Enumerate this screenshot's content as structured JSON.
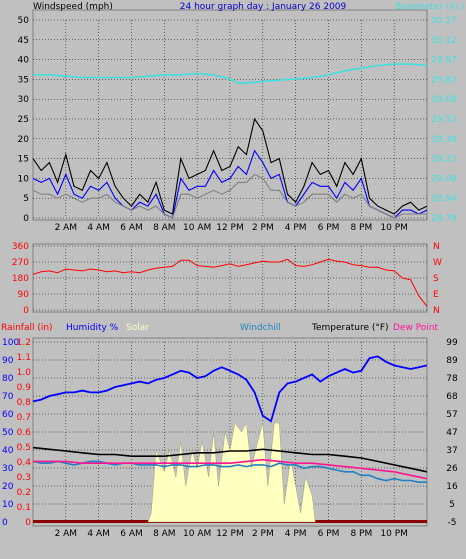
{
  "chart_data": [
    {
      "type": "line",
      "title": "24 hour graph day : January 26 2009",
      "left_axis_label": "Windspeed (mph)",
      "right_axis_label": "Barometer (in.)",
      "x_ticks": [
        "2 AM",
        "4 AM",
        "6 AM",
        "8 AM",
        "10 AM",
        "12 PM",
        "2 PM",
        "4 PM",
        "6 PM",
        "8 PM",
        "10 PM"
      ],
      "x_range_hours": [
        0,
        24
      ],
      "ylim_left": [
        0,
        50
      ],
      "yticks_left": [
        "0",
        "5",
        "10",
        "15",
        "20",
        "25",
        "30",
        "35",
        "40",
        "45",
        "50"
      ],
      "ylim_right": [
        28.79,
        30.27
      ],
      "yticks_right": [
        "28.79",
        "28.94",
        "29.09",
        "29.23",
        "29.38",
        "29.53",
        "29.68",
        "29.83",
        "29.97",
        "30.12",
        "30.27"
      ],
      "grid": true,
      "colors": {
        "barometer": "#40e0e0",
        "gust": "#000000",
        "wind": "#0000ff",
        "avg_wind": "#808080",
        "title": "#0000cc"
      },
      "series": [
        {
          "key": "barometer",
          "axis": "right",
          "x": [
            0,
            1,
            2,
            3,
            4,
            5,
            6,
            7,
            8,
            9,
            10,
            11,
            12,
            12.5,
            13,
            14,
            15,
            16,
            17,
            18,
            19,
            20,
            21,
            22,
            23,
            24
          ],
          "y": [
            29.86,
            29.86,
            29.85,
            29.84,
            29.84,
            29.84,
            29.84,
            29.85,
            29.86,
            29.86,
            29.87,
            29.86,
            29.83,
            29.8,
            29.8,
            29.81,
            29.82,
            29.83,
            29.84,
            29.86,
            29.89,
            29.91,
            29.93,
            29.94,
            29.94,
            29.93
          ]
        },
        {
          "key": "gust",
          "axis": "left",
          "x": [
            0,
            0.5,
            1,
            1.5,
            2,
            2.5,
            3,
            3.5,
            4,
            4.5,
            5,
            5.5,
            6,
            6.5,
            7,
            7.5,
            8,
            8.5,
            9,
            9.5,
            10,
            10.5,
            11,
            11.5,
            12,
            12.5,
            13,
            13.5,
            14,
            14.5,
            15,
            15.5,
            16,
            16.5,
            17,
            17.5,
            18,
            18.5,
            19,
            19.5,
            20,
            20.5,
            21,
            21.5,
            22,
            22.5,
            23,
            23.5,
            24
          ],
          "y": [
            15,
            12,
            14,
            9,
            16,
            8,
            7,
            12,
            10,
            14,
            8,
            5,
            3,
            6,
            4,
            9,
            2,
            1,
            15,
            10,
            11,
            12,
            17,
            12,
            13,
            18,
            16,
            25,
            22,
            14,
            15,
            6,
            4,
            8,
            14,
            11,
            12,
            8,
            14,
            11,
            15,
            5,
            3,
            2,
            1,
            3,
            4,
            2,
            3
          ]
        },
        {
          "key": "wind",
          "axis": "left",
          "x": [
            0,
            0.5,
            1,
            1.5,
            2,
            2.5,
            3,
            3.5,
            4,
            4.5,
            5,
            5.5,
            6,
            6.5,
            7,
            7.5,
            8,
            8.5,
            9,
            9.5,
            10,
            10.5,
            11,
            11.5,
            12,
            12.5,
            13,
            13.5,
            14,
            14.5,
            15,
            15.5,
            16,
            16.5,
            17,
            17.5,
            18,
            18.5,
            19,
            19.5,
            20,
            20.5,
            21,
            21.5,
            22,
            22.5,
            23,
            23.5,
            24
          ],
          "y": [
            10,
            9,
            10,
            6,
            11,
            6,
            5,
            8,
            7,
            9,
            5,
            3,
            2,
            4,
            3,
            6,
            1,
            0,
            10,
            7,
            8,
            8,
            12,
            9,
            10,
            13,
            11,
            17,
            14,
            10,
            11,
            4,
            3,
            6,
            9,
            8,
            8,
            5,
            9,
            7,
            10,
            3,
            2,
            1,
            0,
            2,
            2,
            1,
            2
          ]
        },
        {
          "key": "avg_wind",
          "axis": "left",
          "x": [
            0,
            0.5,
            1,
            1.5,
            2,
            2.5,
            3,
            3.5,
            4,
            4.5,
            5,
            5.5,
            6,
            6.5,
            7,
            7.5,
            8,
            8.5,
            9,
            9.5,
            10,
            10.5,
            11,
            11.5,
            12,
            12.5,
            13,
            13.5,
            14,
            14.5,
            15,
            15.5,
            16,
            16.5,
            17,
            17.5,
            18,
            18.5,
            19,
            19.5,
            20,
            20.5,
            21,
            21.5,
            22,
            22.5,
            23,
            23.5,
            24
          ],
          "y": [
            7,
            6,
            6,
            5,
            6,
            5,
            4,
            5,
            5,
            6,
            4,
            3,
            2,
            3,
            2,
            3,
            1,
            0,
            6,
            6,
            5,
            6,
            7,
            6,
            7,
            9,
            9,
            11,
            10,
            7,
            7,
            4,
            3,
            4,
            6,
            6,
            6,
            4,
            6,
            5,
            6,
            3,
            2,
            1,
            0,
            1,
            1,
            1,
            1
          ]
        }
      ]
    },
    {
      "type": "line",
      "title": "",
      "x_ticks": [
        "2 AM",
        "4 AM",
        "6 AM",
        "8 AM",
        "10 AM",
        "12 PM",
        "2 PM",
        "4 PM",
        "6 PM",
        "8 PM",
        "10 PM"
      ],
      "x_range_hours": [
        0,
        24
      ],
      "ylim_left": [
        0,
        360
      ],
      "yticks_left": [
        "0",
        "90",
        "180",
        "270",
        "360"
      ],
      "yticks_right": [
        "N",
        "E",
        "S",
        "W",
        "N"
      ],
      "grid": true,
      "colors": {
        "direction": "#ff0000",
        "axis_text": "#ff0000"
      },
      "series": [
        {
          "key": "direction",
          "axis": "left",
          "x": [
            0,
            0.5,
            1,
            1.5,
            2,
            2.5,
            3,
            3.5,
            4,
            4.5,
            5,
            5.5,
            6,
            6.5,
            7,
            7.5,
            8,
            8.5,
            9,
            9.5,
            10,
            10.5,
            11,
            11.5,
            12,
            12.5,
            13,
            13.5,
            14,
            14.5,
            15,
            15.5,
            16,
            16.5,
            17,
            17.5,
            18,
            18.5,
            19,
            19.5,
            20,
            20.5,
            21,
            21.5,
            22,
            22.5,
            23,
            23.5,
            24
          ],
          "y": [
            200,
            215,
            220,
            210,
            230,
            225,
            220,
            230,
            225,
            215,
            220,
            210,
            215,
            210,
            225,
            235,
            240,
            245,
            280,
            280,
            250,
            245,
            240,
            250,
            260,
            245,
            255,
            265,
            275,
            270,
            270,
            285,
            250,
            245,
            255,
            270,
            285,
            275,
            270,
            255,
            250,
            240,
            240,
            225,
            220,
            180,
            170,
            80,
            20
          ]
        }
      ]
    },
    {
      "type": "area",
      "title": "",
      "header_labels": {
        "rainfall": "Rainfall (in)",
        "humidity": "Humidity %",
        "solar": "Solar",
        "windchill": "Windchill",
        "temperature": "Temperature (°F)",
        "dew_point": "Dew Point"
      },
      "x_ticks": [
        "2 AM",
        "4 AM",
        "6 AM",
        "8 AM",
        "10 AM",
        "12 PM",
        "2 PM",
        "4 PM",
        "6 PM",
        "8 PM",
        "10 PM"
      ],
      "x_range_hours": [
        0,
        24
      ],
      "ylim_left_humidity": [
        0,
        100
      ],
      "yticks_humidity": [
        "0",
        "10",
        "20",
        "30",
        "40",
        "50",
        "60",
        "70",
        "80",
        "90",
        "100"
      ],
      "yticks_rain": [
        "0",
        "0.1",
        "0.2",
        "0.3",
        "0.4",
        "0.5",
        "0.6",
        "0.7",
        "0.8",
        "0.9",
        "1.0",
        "1.1",
        "1.2"
      ],
      "ylim_right_temperature": [
        -5,
        99
      ],
      "yticks_temperature": [
        "-5",
        "5",
        "16",
        "26",
        "37",
        "47",
        "57",
        "68",
        "78",
        "89",
        "99"
      ],
      "grid": true,
      "colors": {
        "rainfall_label": "#ff0000",
        "humidity": "#0000ff",
        "solar": "#ffffc0",
        "windchill": "#2080c0",
        "temperature": "#000000",
        "dew_point": "#ff1493",
        "rain_base": "#8b0000"
      },
      "series": [
        {
          "key": "humidity",
          "axis": "left",
          "x": [
            0,
            0.5,
            1,
            1.5,
            2,
            2.5,
            3,
            3.5,
            4,
            4.5,
            5,
            5.5,
            6,
            6.5,
            7,
            7.5,
            8,
            8.5,
            9,
            9.5,
            10,
            10.5,
            11,
            11.5,
            12,
            12.5,
            13,
            13.5,
            14,
            14.5,
            15,
            15.5,
            16,
            16.5,
            17,
            17.5,
            18,
            18.5,
            19,
            19.5,
            20,
            20.5,
            21,
            21.5,
            22,
            22.5,
            23,
            23.5,
            24
          ],
          "y": [
            67,
            68,
            70,
            71,
            72,
            72,
            73,
            72,
            72,
            73,
            75,
            76,
            77,
            78,
            77,
            79,
            80,
            82,
            84,
            83,
            80,
            81,
            84,
            86,
            84,
            82,
            79,
            72,
            59,
            56,
            72,
            77,
            78,
            80,
            82,
            78,
            81,
            83,
            85,
            83,
            84,
            91,
            92,
            89,
            87,
            86,
            85,
            86,
            87
          ]
        },
        {
          "key": "solar",
          "axis": "left",
          "x": [
            7,
            7.2,
            7.5,
            8,
            8.3,
            8.7,
            9,
            9.3,
            9.7,
            10,
            10.3,
            10.7,
            11,
            11.3,
            11.7,
            12,
            12.3,
            12.7,
            13,
            13.3,
            13.7,
            14,
            14.3,
            14.7,
            15,
            15.3,
            15.7,
            16,
            16.3,
            16.6,
            17,
            17.2
          ],
          "y": [
            0,
            5,
            40,
            28,
            40,
            25,
            45,
            20,
            40,
            30,
            45,
            25,
            50,
            20,
            50,
            40,
            55,
            50,
            55,
            30,
            45,
            55,
            20,
            55,
            55,
            10,
            35,
            20,
            5,
            25,
            15,
            0
          ]
        },
        {
          "key": "temperature",
          "axis": "right",
          "x": [
            0,
            1,
            2,
            3,
            4,
            5,
            6,
            7,
            8,
            9,
            10,
            11,
            12,
            13,
            14,
            15,
            16,
            17,
            18,
            19,
            20,
            21,
            22,
            23,
            24
          ],
          "y": [
            38,
            37,
            36,
            35,
            34,
            34,
            33,
            33,
            33,
            34,
            35,
            35,
            36,
            36,
            37,
            36,
            35,
            34,
            34,
            33,
            32,
            30,
            28,
            26,
            24
          ]
        },
        {
          "key": "windchill",
          "axis": "right",
          "x": [
            0,
            0.5,
            1,
            1.5,
            2,
            2.5,
            3,
            3.5,
            4,
            4.5,
            5,
            5.5,
            6,
            6.5,
            7,
            7.5,
            8,
            8.5,
            9,
            9.5,
            10,
            10.5,
            11,
            11.5,
            12,
            12.5,
            13,
            13.5,
            14,
            14.5,
            15,
            15.5,
            16,
            16.5,
            17,
            17.5,
            18,
            18.5,
            19,
            19.5,
            20,
            20.5,
            21,
            21.5,
            22,
            22.5,
            23,
            23.5,
            24
          ],
          "y": [
            30,
            29,
            29,
            30,
            29,
            28,
            29,
            30,
            30,
            29,
            28,
            29,
            29,
            28,
            28,
            28,
            27,
            28,
            28,
            27,
            27,
            28,
            28,
            27,
            27,
            28,
            27,
            28,
            28,
            27,
            29,
            28,
            28,
            26,
            27,
            27,
            26,
            25,
            24,
            24,
            22,
            22,
            20,
            19,
            20,
            19,
            19,
            18,
            18
          ]
        },
        {
          "key": "dew_point",
          "axis": "right",
          "x": [
            0,
            1,
            2,
            3,
            4,
            5,
            6,
            7,
            8,
            9,
            10,
            11,
            12,
            13,
            14,
            15,
            16,
            17,
            18,
            19,
            20,
            21,
            22,
            23,
            24
          ],
          "y": [
            30,
            30,
            30,
            29,
            29,
            29,
            29,
            29,
            29,
            29,
            29,
            29,
            29,
            30,
            31,
            30,
            29,
            29,
            28,
            27,
            26,
            25,
            24,
            22,
            20
          ]
        }
      ]
    }
  ]
}
